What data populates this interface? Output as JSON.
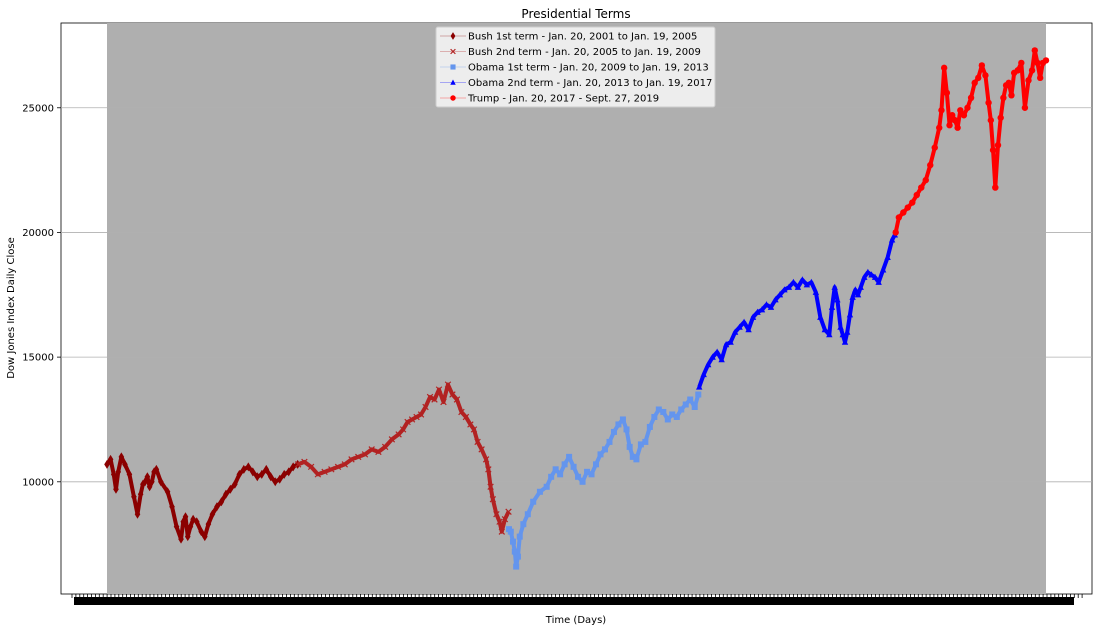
{
  "chart_data": {
    "type": "scatter",
    "title": "Presidential Terms",
    "xlabel": "Time (Days)",
    "ylabel": "Dow Jones Index Daily Close",
    "ylim": [
      5500,
      28400
    ],
    "yticks": [
      10000,
      15000,
      20000,
      25000
    ],
    "grid": "horizontal",
    "legend_position": "top-center",
    "background": {
      "plot_shade": "#afafaf"
    },
    "series": [
      {
        "name": "Bush 1st term - Jan. 20, 2001 to Jan. 19, 2005",
        "marker": "diamond",
        "color": "#8b0000",
        "x": [
          0.0,
          0.8,
          1.5,
          2.0,
          2.5,
          3.2,
          4.0,
          5.0,
          6.0,
          6.8,
          7.5,
          8.0,
          8.5,
          9.0,
          9.5,
          10.0,
          10.5,
          11.0,
          12.0,
          13.5,
          14.5,
          15.5,
          16.5,
          17.0,
          17.5,
          18.0,
          18.6,
          19.2,
          20.0,
          21.0,
          21.8,
          22.6,
          23.5,
          24.5,
          25.5,
          26.5,
          27.5,
          28.5,
          29.5,
          30.5,
          31.5,
          32.5,
          33.5,
          34.5,
          35.5,
          36.5,
          37.5,
          38.5,
          39.5,
          40.5,
          41.5,
          42.5
        ],
        "y": [
          10700,
          10900,
          10300,
          9700,
          10400,
          11000,
          10700,
          10300,
          9400,
          8700,
          9500,
          9900,
          10000,
          10200,
          9800,
          10000,
          10400,
          10500,
          10000,
          9600,
          9000,
          8200,
          7700,
          8400,
          8600,
          7800,
          8200,
          8500,
          8400,
          8000,
          7800,
          8300,
          8700,
          9000,
          9200,
          9500,
          9700,
          9900,
          10300,
          10500,
          10600,
          10400,
          10200,
          10300,
          10500,
          10200,
          10000,
          10100,
          10300,
          10400,
          10600,
          10700
        ]
      },
      {
        "name": "Bush 2nd term - Jan. 20, 2005 to Jan. 19, 2009",
        "marker": "x",
        "color": "#b22222",
        "x": [
          42.6,
          44.0,
          45.5,
          47.0,
          48.5,
          50.0,
          51.5,
          53.0,
          54.5,
          56.0,
          57.5,
          59.0,
          60.5,
          62.0,
          63.5,
          65.0,
          66.0,
          67.0,
          68.0,
          69.0,
          70.0,
          71.0,
          72.0,
          73.0,
          74.0,
          75.0,
          76.0,
          77.0,
          78.0,
          79.0,
          80.0,
          81.0,
          81.8,
          82.6,
          83.5,
          84.5,
          85.0,
          85.5,
          86.0,
          86.8,
          87.5,
          88.0,
          88.7,
          89.5
        ],
        "y": [
          10700,
          10800,
          10600,
          10300,
          10400,
          10500,
          10600,
          10700,
          10900,
          11000,
          11100,
          11300,
          11200,
          11400,
          11700,
          11900,
          12100,
          12400,
          12500,
          12600,
          12700,
          13000,
          13400,
          13300,
          13700,
          13200,
          13900,
          13500,
          13300,
          12800,
          12600,
          12300,
          12100,
          11600,
          11300,
          10900,
          10500,
          9800,
          9300,
          8700,
          8400,
          8000,
          8500,
          8800
        ]
      },
      {
        "name": "Obama 1st term - Jan. 20, 2009 to Jan. 19, 2013",
        "marker": "square",
        "color": "#6495ed",
        "x": [
          89.6,
          90.0,
          90.5,
          90.9,
          91.2,
          91.6,
          92.0,
          92.8,
          93.8,
          95.0,
          96.5,
          98.0,
          99.0,
          100.0,
          101.0,
          102.0,
          103.0,
          104.0,
          105.0,
          106.0,
          107.0,
          108.0,
          109.0,
          110.0,
          111.0,
          112.0,
          113.0,
          114.0,
          115.0,
          115.8,
          116.5,
          117.2,
          118.0,
          119.0,
          120.0,
          121.0,
          122.0,
          123.0,
          124.0,
          125.0,
          126.0,
          127.0,
          128.0,
          129.0,
          130.0,
          131.0,
          131.8
        ],
        "y": [
          8100,
          8000,
          7600,
          7200,
          6600,
          7000,
          7800,
          8300,
          8700,
          9200,
          9600,
          9800,
          10200,
          10500,
          10300,
          10700,
          11000,
          10600,
          10200,
          10000,
          10400,
          10300,
          10700,
          11100,
          11300,
          11600,
          12000,
          12300,
          12500,
          12100,
          11400,
          11000,
          10900,
          11500,
          11600,
          12200,
          12600,
          12900,
          12800,
          12500,
          12700,
          12600,
          12900,
          13100,
          13300,
          13000,
          13500
        ]
      },
      {
        "name": "Obama 2nd term - Jan. 20, 2013 to Jan. 19, 2017",
        "marker": "triangle",
        "color": "#0000ff",
        "x": [
          132.0,
          133.0,
          134.0,
          135.0,
          136.0,
          137.0,
          138.0,
          139.0,
          140.0,
          141.0,
          142.0,
          143.0,
          144.0,
          145.0,
          146.0,
          147.0,
          148.0,
          149.0,
          150.0,
          151.0,
          152.0,
          153.0,
          154.0,
          155.0,
          156.0,
          157.0,
          158.0,
          159.0,
          160.0,
          161.0,
          161.6,
          162.2,
          162.8,
          163.5,
          164.0,
          164.5,
          165.0,
          165.6,
          166.2,
          166.8,
          167.4,
          168.0,
          168.8,
          169.6,
          170.4,
          171.2,
          172.0,
          173.0,
          174.0,
          175.0,
          175.6
        ],
        "y": [
          13800,
          14300,
          14700,
          15000,
          15200,
          14900,
          15500,
          15600,
          16000,
          16200,
          16400,
          16100,
          16600,
          16800,
          16900,
          17100,
          17000,
          17300,
          17500,
          17700,
          17800,
          18000,
          17800,
          18100,
          17900,
          18000,
          17600,
          16600,
          16100,
          15900,
          17000,
          17800,
          17300,
          16200,
          15900,
          15600,
          16000,
          16700,
          17400,
          17700,
          17500,
          17800,
          18200,
          18400,
          18300,
          18200,
          18000,
          18500,
          19000,
          19700,
          19900
        ]
      },
      {
        "name": "Trump - Jan. 20, 2017 - Sept. 27, 2019",
        "marker": "circle",
        "color": "#ff0000",
        "x": [
          175.8,
          176.5,
          177.5,
          178.5,
          179.5,
          180.5,
          181.5,
          182.5,
          183.5,
          184.5,
          185.5,
          186.0,
          186.6,
          187.2,
          187.8,
          188.4,
          189.0,
          189.6,
          190.2,
          191.0,
          191.8,
          192.6,
          193.4,
          194.2,
          195.0,
          195.8,
          196.5,
          197.0,
          197.5,
          198.0,
          198.6,
          199.2,
          199.8,
          200.4,
          201.0,
          201.6,
          202.2,
          203.0,
          203.8,
          204.6,
          205.4,
          206.2,
          206.8,
          207.4,
          208.0,
          208.6,
          209.3
        ],
        "y": [
          20000,
          20600,
          20800,
          21000,
          21200,
          21500,
          21800,
          22100,
          22700,
          23400,
          24200,
          24900,
          26600,
          25600,
          24300,
          24700,
          24500,
          24200,
          24900,
          24700,
          25000,
          25400,
          26000,
          26200,
          26700,
          26300,
          25200,
          24500,
          23300,
          21800,
          23500,
          24600,
          25400,
          25900,
          26000,
          25500,
          26400,
          26500,
          26800,
          25000,
          26100,
          26500,
          27300,
          26800,
          26200,
          26800,
          26900
        ]
      }
    ]
  }
}
